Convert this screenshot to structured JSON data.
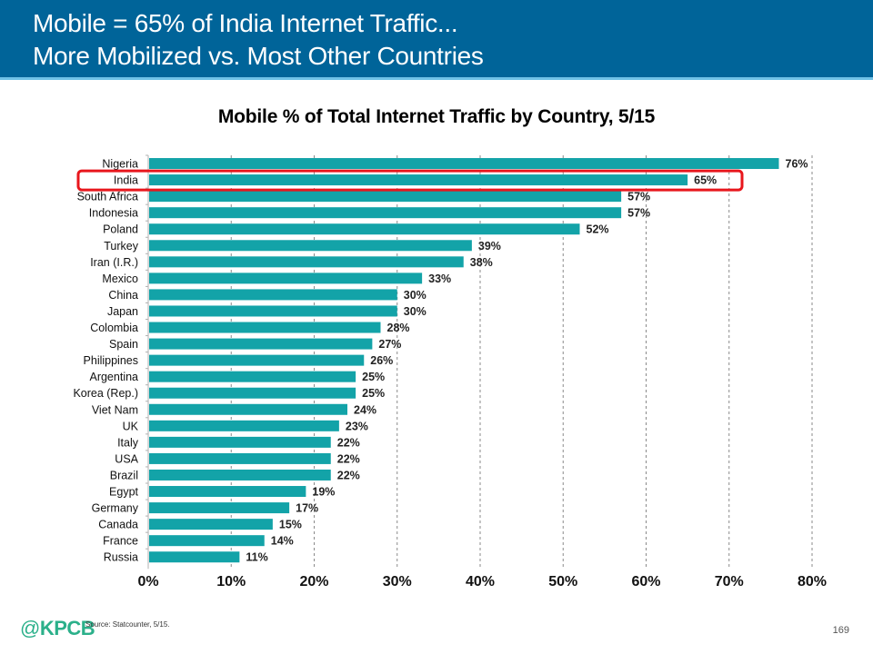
{
  "header": {
    "title_line1": "Mobile = 65% of India Internet Traffic...",
    "title_line2": "More Mobilized vs. Most Other Countries"
  },
  "colors": {
    "header_bg": "#006499",
    "bar": "#13a3a8",
    "highlight": "#e8161c",
    "logo": "#2bb08a"
  },
  "chart_data": {
    "type": "bar",
    "orientation": "horizontal",
    "title": "Mobile % of Total Internet Traffic by Country, 5/15",
    "xlabel": "",
    "ylabel": "",
    "xlim": [
      0,
      80
    ],
    "xticks": [
      "0%",
      "10%",
      "20%",
      "30%",
      "40%",
      "50%",
      "60%",
      "70%",
      "80%"
    ],
    "grid": "vertical dashed",
    "categories": [
      "Nigeria",
      "India",
      "South Africa",
      "Indonesia",
      "Poland",
      "Turkey",
      "Iran (I.R.)",
      "Mexico",
      "China",
      "Japan",
      "Colombia",
      "Spain",
      "Philippines",
      "Argentina",
      "Korea (Rep.)",
      "Viet Nam",
      "UK",
      "Italy",
      "USA",
      "Brazil",
      "Egypt",
      "Germany",
      "Canada",
      "France",
      "Russia"
    ],
    "values": [
      76,
      65,
      57,
      57,
      52,
      39,
      38,
      33,
      30,
      30,
      28,
      27,
      26,
      25,
      25,
      24,
      23,
      22,
      22,
      22,
      19,
      17,
      15,
      14,
      11
    ],
    "data_labels": [
      "76%",
      "65%",
      "57%",
      "57%",
      "52%",
      "39%",
      "38%",
      "33%",
      "30%",
      "30%",
      "28%",
      "27%",
      "26%",
      "25%",
      "25%",
      "24%",
      "23%",
      "22%",
      "22%",
      "22%",
      "19%",
      "17%",
      "15%",
      "14%",
      "11%"
    ],
    "highlighted_category": "India"
  },
  "footer": {
    "logo_at": "@",
    "logo_text": "KPCB",
    "source": "Source: Statcounter, 5/15.",
    "page_number": "169"
  }
}
